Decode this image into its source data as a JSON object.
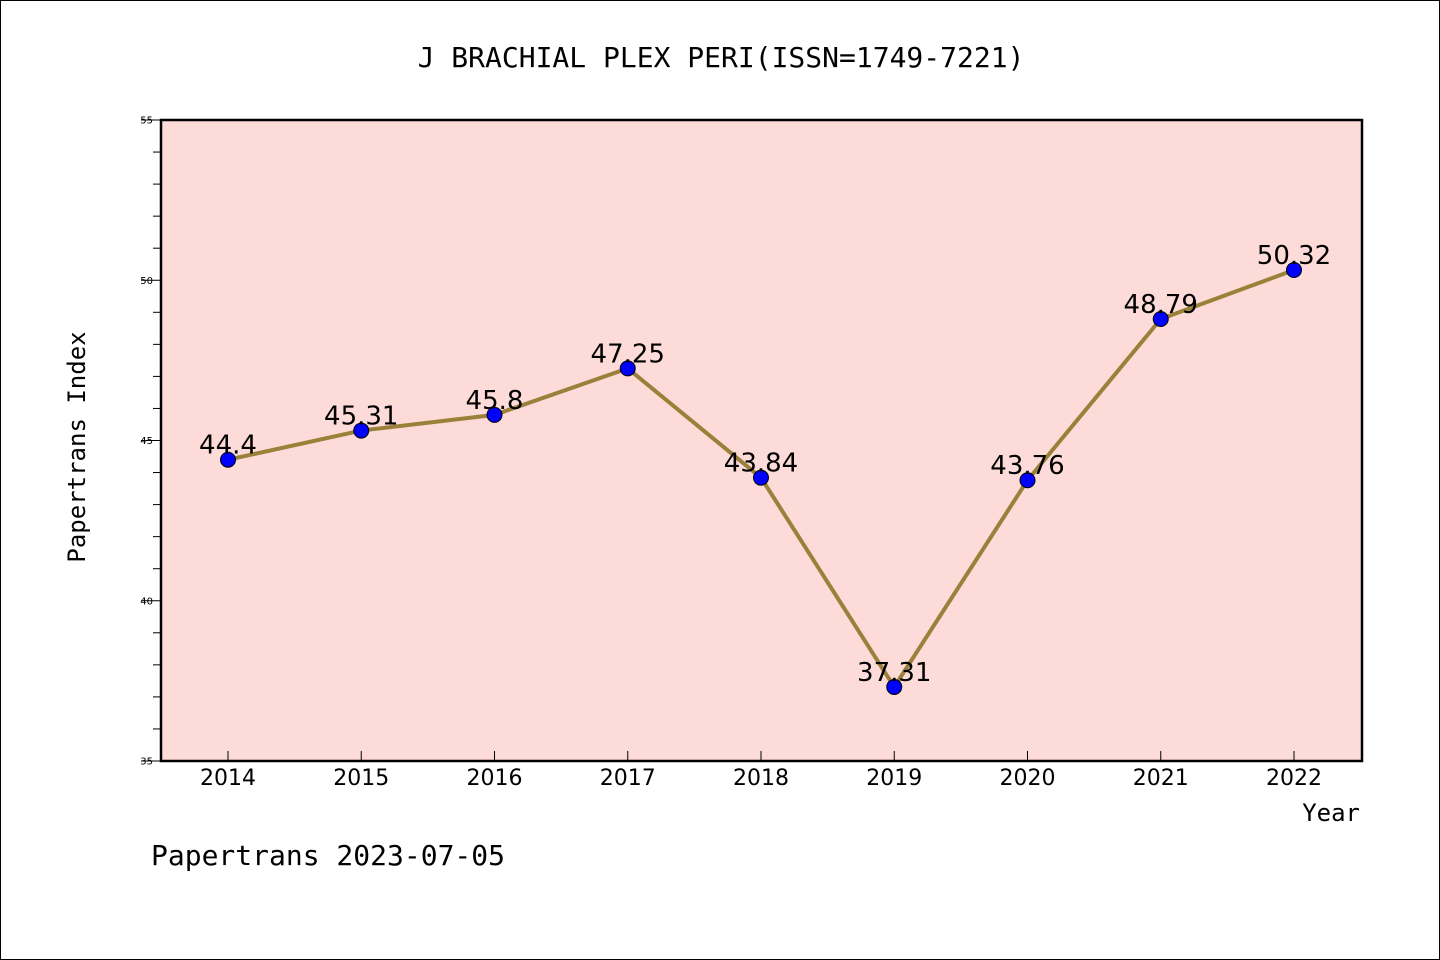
{
  "chart_data": {
    "type": "line",
    "title": "J BRACHIAL PLEX PERI(ISSN=1749-7221)",
    "xlabel": "Year",
    "ylabel": "Papertrans Index",
    "categories": [
      "2014",
      "2015",
      "2016",
      "2017",
      "2018",
      "2019",
      "2020",
      "2021",
      "2022"
    ],
    "values": [
      44.4,
      45.31,
      45.8,
      47.25,
      43.84,
      37.31,
      43.76,
      48.79,
      50.32
    ],
    "data_labels": [
      "44.4",
      "45.31",
      "45.8",
      "47.25",
      "43.84",
      "37.31",
      "43.76",
      "48.79",
      "50.32"
    ],
    "ylim": [
      35,
      55
    ],
    "yticks": [
      "35",
      "40",
      "45",
      "50",
      "55"
    ],
    "grid": false,
    "legend": "none",
    "colors": {
      "plot_background": "#fddbd8",
      "line": "#9a8038",
      "marker": "#0000ff"
    }
  },
  "footer": {
    "text": "Papertrans 2023-07-05"
  }
}
